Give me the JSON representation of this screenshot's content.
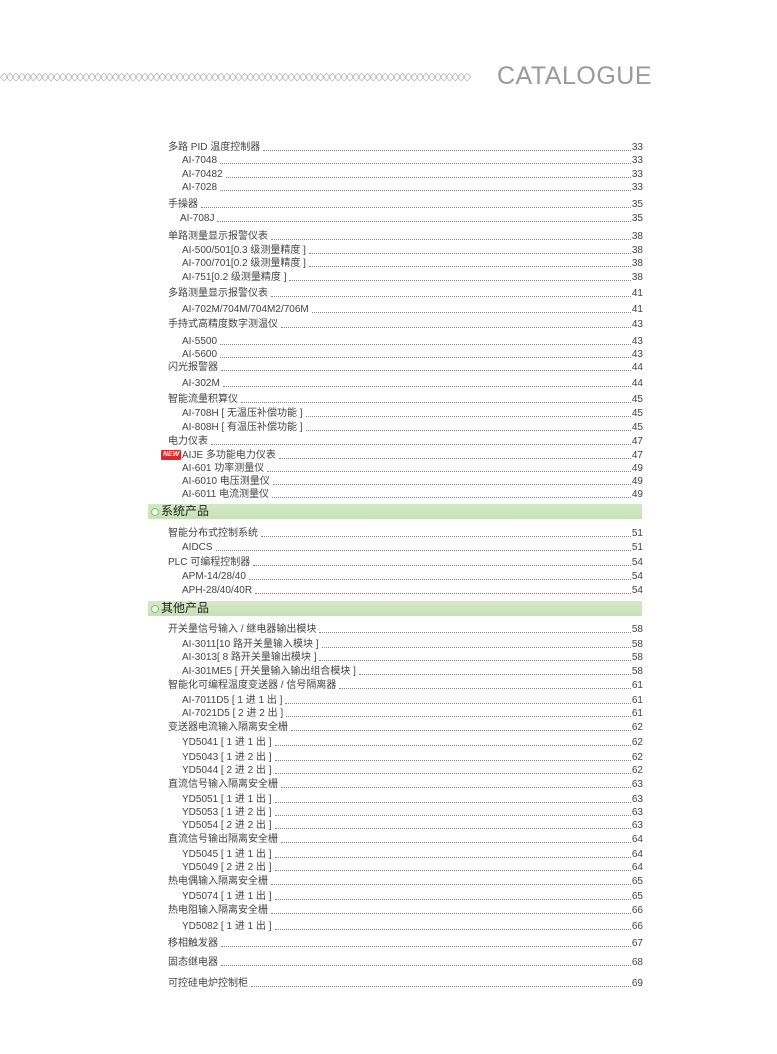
{
  "header": {
    "title": "CATALOGUE",
    "decoration_icon": "diamond-chain-icon"
  },
  "colors": {
    "section_band": "#cde6bf",
    "new_badge": "#e0282b",
    "title": "#9a9a9a"
  },
  "new_badge": "NEW",
  "entries": [
    {
      "label": "多路 PID 温度控制器",
      "page": "33",
      "level": 0
    },
    {
      "label": "AI-7048",
      "page": "33",
      "level": 1
    },
    {
      "label": "AI-70482",
      "page": "33",
      "level": 1
    },
    {
      "label": "AI-7028",
      "page": "33",
      "level": 1
    },
    {
      "label": "手操器",
      "page": "35",
      "level": 0
    },
    {
      "label": "AI-708J",
      "page": "35",
      "level": 1
    },
    {
      "label": "单路测量显示报警仪表",
      "page": "38",
      "level": 0
    },
    {
      "label": "AI-500/501[0.3 级测量精度 ]",
      "page": "38",
      "level": 1
    },
    {
      "label": "AI-700/701[0.2 级测量精度 ]",
      "page": "38",
      "level": 1
    },
    {
      "label": "AI-751[0.2 级测量精度 ]",
      "page": "38",
      "level": 1
    },
    {
      "label": "多路测量显示报警仪表",
      "page": "41",
      "level": 0
    },
    {
      "label": "AI-702M/704M/704M2/706M",
      "page": "41",
      "level": 1
    },
    {
      "label": "手持式高精度数字测温仪",
      "page": "43",
      "level": 0
    },
    {
      "label": "AI-5500",
      "page": "43",
      "level": 1
    },
    {
      "label": "AI-5600",
      "page": "43",
      "level": 1
    },
    {
      "label": "闪光报警器",
      "page": "44",
      "level": 0
    },
    {
      "label": "AI-302M",
      "page": "44",
      "level": 1
    },
    {
      "label": "智能流量积算仪",
      "page": "45",
      "level": 0
    },
    {
      "label": "AI-708H [ 无温压补偿功能 ]",
      "page": "45",
      "level": 1
    },
    {
      "label": "AI-808H [ 有温压补偿功能 ]",
      "page": "45",
      "level": 1
    },
    {
      "label": "电力仪表",
      "page": "47",
      "level": 0
    },
    {
      "label": "AIJE 多功能电力仪表",
      "page": "47",
      "level": 1,
      "is_new": true
    },
    {
      "label": "AI-601 功率测量仪",
      "page": "49",
      "level": 1
    },
    {
      "label": "AI-6010 电压测量仪",
      "page": "49",
      "level": 1
    },
    {
      "label": "AI-6011 电流测量仪",
      "page": "49",
      "level": 1
    },
    {
      "section": "系统产品"
    },
    {
      "label": "智能分布式控制系统",
      "page": "51",
      "level": 0
    },
    {
      "label": "AIDCS",
      "page": "51",
      "level": 1
    },
    {
      "label": "PLC 可编程控制器",
      "page": "54",
      "level": 0
    },
    {
      "label": "APM-14/28/40",
      "page": "54",
      "level": 1
    },
    {
      "label": "APH-28/40/40R",
      "page": "54",
      "level": 1
    },
    {
      "section": "其他产品"
    },
    {
      "label": "开关量信号输入 / 继电器输出模块",
      "page": "58",
      "level": 0
    },
    {
      "label": "AI-3011[10 路开关量输入模块 ]",
      "page": "58",
      "level": 1
    },
    {
      "label": "AI-3013[ 8 路开关量输出模块 ]",
      "page": "58",
      "level": 1
    },
    {
      "label": "AI-301ME5 [ 开关量输入输出组合模块 ]",
      "page": "58",
      "level": 1
    },
    {
      "label": "智能化可编程温度变送器 / 信号隔离器",
      "page": "61",
      "level": 0
    },
    {
      "label": "AI-7011D5 [ 1 进 1 出 ]",
      "page": "61",
      "level": 1
    },
    {
      "label": "AI-7021D5 [ 2 进 2 出 ]",
      "page": "61",
      "level": 1
    },
    {
      "label": "变送器电流输入隔离安全栅",
      "page": "62",
      "level": 0
    },
    {
      "label": "YD5041 [ 1 进 1 出 ]",
      "page": "62",
      "level": 1
    },
    {
      "label": "YD5043 [ 1 进 2 出 ]",
      "page": "62",
      "level": 1
    },
    {
      "label": "YD5044 [ 2 进 2 出 ]",
      "page": "62",
      "level": 1
    },
    {
      "label": "直流信号输入隔离安全栅",
      "page": "63",
      "level": 0
    },
    {
      "label": "YD5051 [ 1 进 1 出 ]",
      "page": "63",
      "level": 1
    },
    {
      "label": "YD5053 [ 1 进 2 出 ]",
      "page": "63",
      "level": 1
    },
    {
      "label": "YD5054 [ 2 进 2 出 ]",
      "page": "63",
      "level": 1
    },
    {
      "label": "直流信号输出隔离安全栅",
      "page": "64",
      "level": 0
    },
    {
      "label": "YD5045 [ 1 进 1 出 ]",
      "page": "64",
      "level": 1
    },
    {
      "label": "YD5049 [ 2 进 2 出 ]",
      "page": "64",
      "level": 1
    },
    {
      "label": "热电偶输入隔离安全栅",
      "page": "65",
      "level": 0
    },
    {
      "label": "YD5074 [ 1 进 1 出 ]",
      "page": "65",
      "level": 1
    },
    {
      "label": "热电阻输入隔离安全栅",
      "page": "66",
      "level": 0
    },
    {
      "label": "YD5082 [ 1 进 1 出 ]",
      "page": "66",
      "level": 1
    },
    {
      "label": "移相触发器",
      "page": "67",
      "level": 0
    },
    {
      "label": "固态继电器",
      "page": "68",
      "level": 0
    },
    {
      "label": "可控硅电炉控制柜",
      "page": "69",
      "level": 0
    }
  ]
}
